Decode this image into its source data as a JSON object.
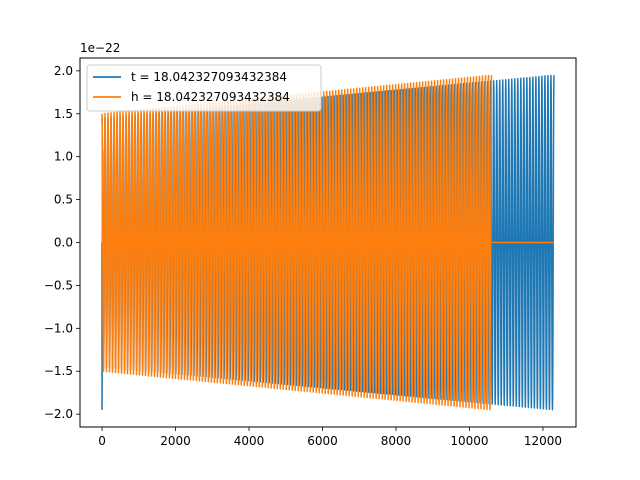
{
  "chart_data": {
    "type": "line",
    "title": "",
    "xlabel": "",
    "ylabel": "",
    "y_offset_text": "1e−22",
    "xlim": [
      -600,
      12900
    ],
    "ylim": [
      -2.15,
      2.15
    ],
    "xticks": [
      0,
      2000,
      4000,
      6000,
      8000,
      10000,
      12000
    ],
    "xtick_labels": [
      "0",
      "2000",
      "4000",
      "6000",
      "8000",
      "10000",
      "12000"
    ],
    "yticks": [
      -2.0,
      -1.5,
      -1.0,
      -0.5,
      0.0,
      0.5,
      1.0,
      1.5,
      2.0
    ],
    "ytick_labels": [
      "−2.0",
      "−1.5",
      "−1.0",
      "−0.5",
      "0.0",
      "0.5",
      "1.0",
      "1.5",
      "2.0"
    ],
    "grid": false,
    "legend_position": "top-left",
    "series": [
      {
        "name": "t = 18.042327093432384",
        "color": "#1f77b4",
        "x_range": [
          0,
          12300
        ],
        "envelope_start": 1.45,
        "envelope_end": 1.95,
        "peak": 1.95,
        "trough": -1.95,
        "cycles": 150
      },
      {
        "name": "h = 18.042327093432384",
        "color": "#ff7f0e",
        "x_range": [
          0,
          10600
        ],
        "envelope_start": 1.5,
        "envelope_end": 1.95,
        "cycles": 130,
        "flat_x_range": [
          10600,
          12300
        ],
        "flat_value": 0.0
      }
    ]
  }
}
